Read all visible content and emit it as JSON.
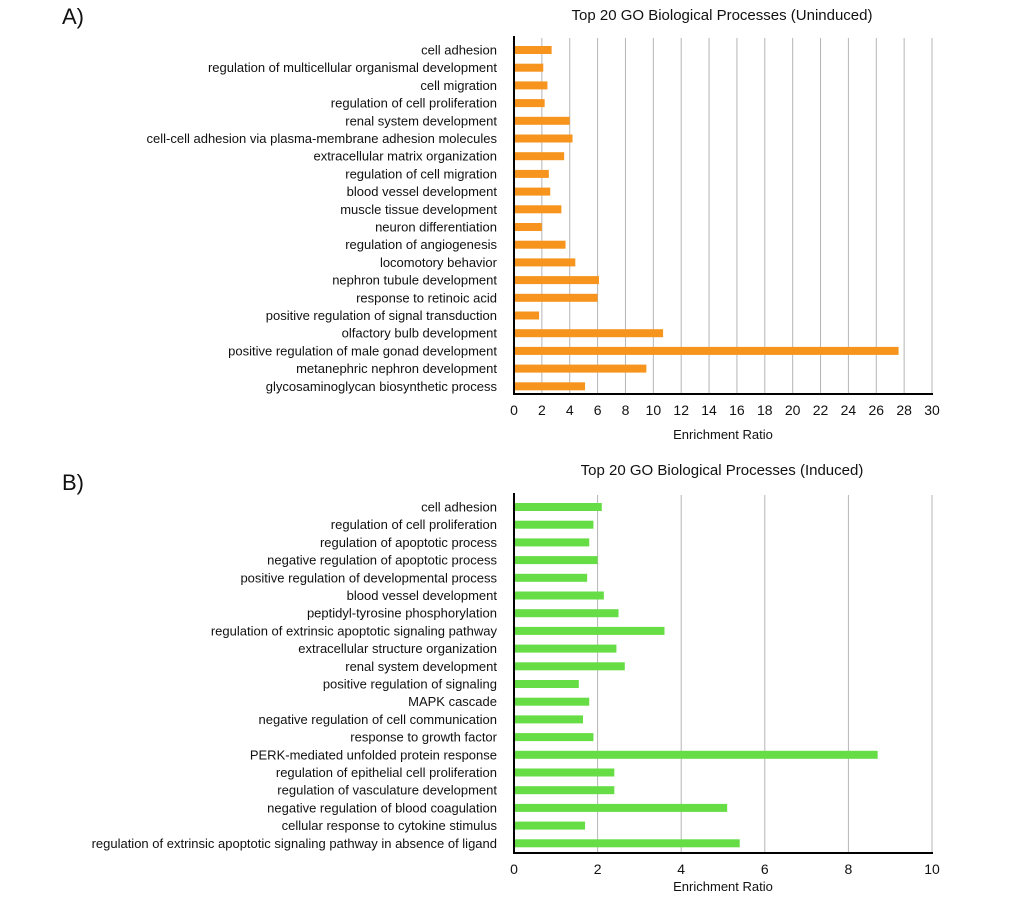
{
  "panels": [
    {
      "letter": "A)"
    },
    {
      "letter": "B)"
    }
  ],
  "chart_data": [
    {
      "type": "bar",
      "orientation": "horizontal",
      "title": "Top 20 GO Biological Processes (Uninduced)",
      "xlabel": "Enrichment Ratio",
      "ylabel": "",
      "xlim": [
        0,
        30
      ],
      "ticks": [
        0,
        2,
        4,
        6,
        8,
        10,
        12,
        14,
        16,
        18,
        20,
        22,
        24,
        26,
        28,
        30
      ],
      "grid": true,
      "color": "#f7941d",
      "categories": [
        "cell adhesion",
        "regulation of multicellular organismal development",
        "cell migration",
        "regulation of cell proliferation",
        "renal system development",
        "cell-cell adhesion via plasma-membrane adhesion molecules",
        "extracellular matrix organization",
        "regulation of cell migration",
        "blood vessel development",
        "muscle tissue development",
        "neuron differentiation",
        "regulation of angiogenesis",
        "locomotory behavior",
        "nephron tubule development",
        "response to retinoic acid",
        "positive regulation of signal transduction",
        "olfactory bulb development",
        "positive regulation of male gonad development",
        "metanephric nephron development",
        "glycosaminoglycan biosynthetic process"
      ],
      "values": [
        2.7,
        2.1,
        2.4,
        2.2,
        4.0,
        4.2,
        3.6,
        2.5,
        2.6,
        3.4,
        2.0,
        3.7,
        4.4,
        6.1,
        6.0,
        1.8,
        10.7,
        27.6,
        9.5,
        5.1
      ]
    },
    {
      "type": "bar",
      "orientation": "horizontal",
      "title": "Top 20 GO Biological Processes (Induced)",
      "xlabel": "Enrichment Ratio",
      "ylabel": "",
      "xlim": [
        0,
        10
      ],
      "ticks": [
        0,
        2,
        4,
        6,
        8,
        10
      ],
      "grid": true,
      "color": "#66dd44",
      "categories": [
        "cell adhesion",
        "regulation of cell proliferation",
        "regulation of apoptotic process",
        "negative regulation of apoptotic process",
        "positive regulation of developmental process",
        "blood vessel development",
        "peptidyl-tyrosine phosphorylation",
        "regulation of extrinsic apoptotic signaling pathway",
        "extracellular structure organization",
        "renal system development",
        "positive regulation of signaling",
        "MAPK cascade",
        "negative regulation of cell communication",
        "response to growth factor",
        "PERK-mediated unfolded protein response",
        "regulation of epithelial cell proliferation",
        "regulation of vasculature development",
        "negative regulation of blood coagulation",
        "cellular response to cytokine stimulus",
        "regulation of extrinsic apoptotic signaling pathway in absence of ligand"
      ],
      "values": [
        2.1,
        1.9,
        1.8,
        2.0,
        1.75,
        2.15,
        2.5,
        3.6,
        2.45,
        2.65,
        1.55,
        1.8,
        1.65,
        1.9,
        8.7,
        2.4,
        2.4,
        5.1,
        1.7,
        5.4
      ]
    }
  ]
}
